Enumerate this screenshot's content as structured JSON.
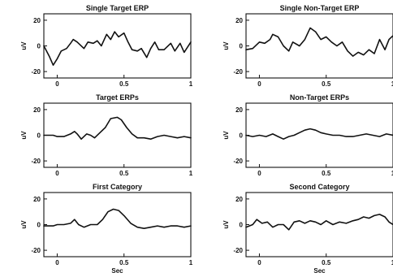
{
  "chart_data": [
    {
      "type": "line",
      "title": "Single Target ERP",
      "xlabel": "",
      "ylabel": "uV",
      "xlim": [
        -0.1,
        1.0
      ],
      "ylim": [
        -25,
        25
      ],
      "xticks": [
        "0",
        "0.5",
        "1"
      ],
      "yticks": [
        "20",
        "0",
        "-20"
      ],
      "x": [
        -0.1,
        -0.06,
        -0.03,
        0.0,
        0.03,
        0.07,
        0.1,
        0.12,
        0.15,
        0.2,
        0.23,
        0.27,
        0.3,
        0.33,
        0.37,
        0.4,
        0.43,
        0.46,
        0.5,
        0.53,
        0.56,
        0.6,
        0.63,
        0.67,
        0.7,
        0.73,
        0.76,
        0.8,
        0.85,
        0.88,
        0.92,
        0.95,
        1.0
      ],
      "y": [
        0,
        -8,
        -15,
        -10,
        -4,
        -2,
        2,
        5,
        3,
        -2,
        3,
        2,
        4,
        0,
        9,
        5,
        11,
        7,
        10,
        3,
        -3,
        -4,
        -2,
        -9,
        -2,
        3,
        -3,
        -3,
        2,
        -4,
        2,
        -5,
        3
      ]
    },
    {
      "type": "line",
      "title": "Single Non-Target ERP",
      "xlabel": "",
      "ylabel": "uV",
      "xlim": [
        -0.1,
        1.0
      ],
      "ylim": [
        -25,
        25
      ],
      "xticks": [
        "0",
        "0.5",
        "1"
      ],
      "yticks": [
        "20",
        "0",
        "-20"
      ],
      "x": [
        -0.1,
        -0.05,
        0.0,
        0.04,
        0.08,
        0.1,
        0.14,
        0.18,
        0.22,
        0.25,
        0.3,
        0.34,
        0.38,
        0.42,
        0.46,
        0.5,
        0.54,
        0.58,
        0.62,
        0.66,
        0.7,
        0.74,
        0.78,
        0.82,
        0.86,
        0.9,
        0.94,
        0.97,
        1.0
      ],
      "y": [
        -3,
        -2,
        3,
        2,
        5,
        9,
        7,
        0,
        -4,
        3,
        0,
        5,
        14,
        11,
        5,
        7,
        3,
        0,
        3,
        -4,
        -8,
        -5,
        -7,
        -3,
        -6,
        5,
        -3,
        5,
        8
      ]
    },
    {
      "type": "line",
      "title": "Target ERPs",
      "xlabel": "",
      "ylabel": "uV",
      "xlim": [
        -0.1,
        1.0
      ],
      "ylim": [
        -25,
        25
      ],
      "xticks": [
        "0",
        "0.5",
        "1"
      ],
      "yticks": [
        "20",
        "0",
        "-20"
      ],
      "x": [
        -0.1,
        -0.03,
        0.0,
        0.05,
        0.1,
        0.13,
        0.15,
        0.18,
        0.22,
        0.25,
        0.28,
        0.32,
        0.36,
        0.4,
        0.45,
        0.48,
        0.52,
        0.56,
        0.6,
        0.65,
        0.7,
        0.75,
        0.8,
        0.85,
        0.9,
        0.95,
        1.0
      ],
      "y": [
        0,
        0,
        -1,
        -1,
        1,
        3,
        1,
        -3,
        1,
        0,
        -2,
        2,
        6,
        13,
        14,
        12,
        6,
        1,
        -2,
        -2,
        -3,
        -1,
        0,
        -1,
        -2,
        -1,
        -2
      ]
    },
    {
      "type": "line",
      "title": "Non-Target ERPs",
      "xlabel": "",
      "ylabel": "uV",
      "xlim": [
        -0.1,
        1.0
      ],
      "ylim": [
        -25,
        25
      ],
      "xticks": [
        "0",
        "0.5",
        "1"
      ],
      "yticks": [
        "20",
        "0",
        "-20"
      ],
      "x": [
        -0.1,
        -0.05,
        0.0,
        0.05,
        0.1,
        0.14,
        0.18,
        0.22,
        0.26,
        0.3,
        0.34,
        0.38,
        0.42,
        0.46,
        0.5,
        0.55,
        0.6,
        0.65,
        0.7,
        0.75,
        0.8,
        0.85,
        0.9,
        0.95,
        1.0
      ],
      "y": [
        0,
        -1,
        0,
        -1,
        1,
        -1,
        -3,
        -1,
        0,
        2,
        4,
        5,
        4,
        2,
        1,
        0,
        0,
        -1,
        -1,
        0,
        1,
        0,
        -1,
        1,
        0
      ]
    },
    {
      "type": "line",
      "title": "First Category",
      "xlabel": "Sec",
      "ylabel": "uV",
      "xlim": [
        -0.1,
        1.0
      ],
      "ylim": [
        -25,
        25
      ],
      "xticks": [
        "0",
        "0.5",
        "1"
      ],
      "yticks": [
        "20",
        "0",
        "-20"
      ],
      "x": [
        -0.1,
        -0.03,
        0.0,
        0.05,
        0.1,
        0.13,
        0.16,
        0.2,
        0.25,
        0.3,
        0.34,
        0.38,
        0.42,
        0.46,
        0.5,
        0.55,
        0.6,
        0.65,
        0.7,
        0.75,
        0.8,
        0.85,
        0.9,
        0.95,
        1.0
      ],
      "y": [
        -1,
        -1,
        0,
        0,
        1,
        4,
        0,
        -2,
        0,
        0,
        4,
        10,
        12,
        11,
        7,
        1,
        -2,
        -3,
        -2,
        -1,
        -2,
        -1,
        -1,
        -2,
        -1
      ]
    },
    {
      "type": "line",
      "title": "Second Category",
      "xlabel": "Sec",
      "ylabel": "uV",
      "xlim": [
        -0.1,
        1.0
      ],
      "ylim": [
        -25,
        25
      ],
      "xticks": [
        "0",
        "0.5",
        "1"
      ],
      "yticks": [
        "20",
        "0",
        "-20"
      ],
      "x": [
        -0.1,
        -0.05,
        -0.02,
        0.02,
        0.06,
        0.1,
        0.14,
        0.18,
        0.22,
        0.26,
        0.3,
        0.34,
        0.38,
        0.42,
        0.46,
        0.5,
        0.55,
        0.6,
        0.65,
        0.7,
        0.74,
        0.78,
        0.82,
        0.86,
        0.9,
        0.94,
        0.97,
        1.0
      ],
      "y": [
        -2,
        0,
        4,
        1,
        2,
        -2,
        0,
        0,
        -4,
        2,
        3,
        1,
        3,
        2,
        0,
        3,
        0,
        2,
        1,
        3,
        4,
        6,
        5,
        7,
        8,
        6,
        2,
        0
      ]
    }
  ]
}
